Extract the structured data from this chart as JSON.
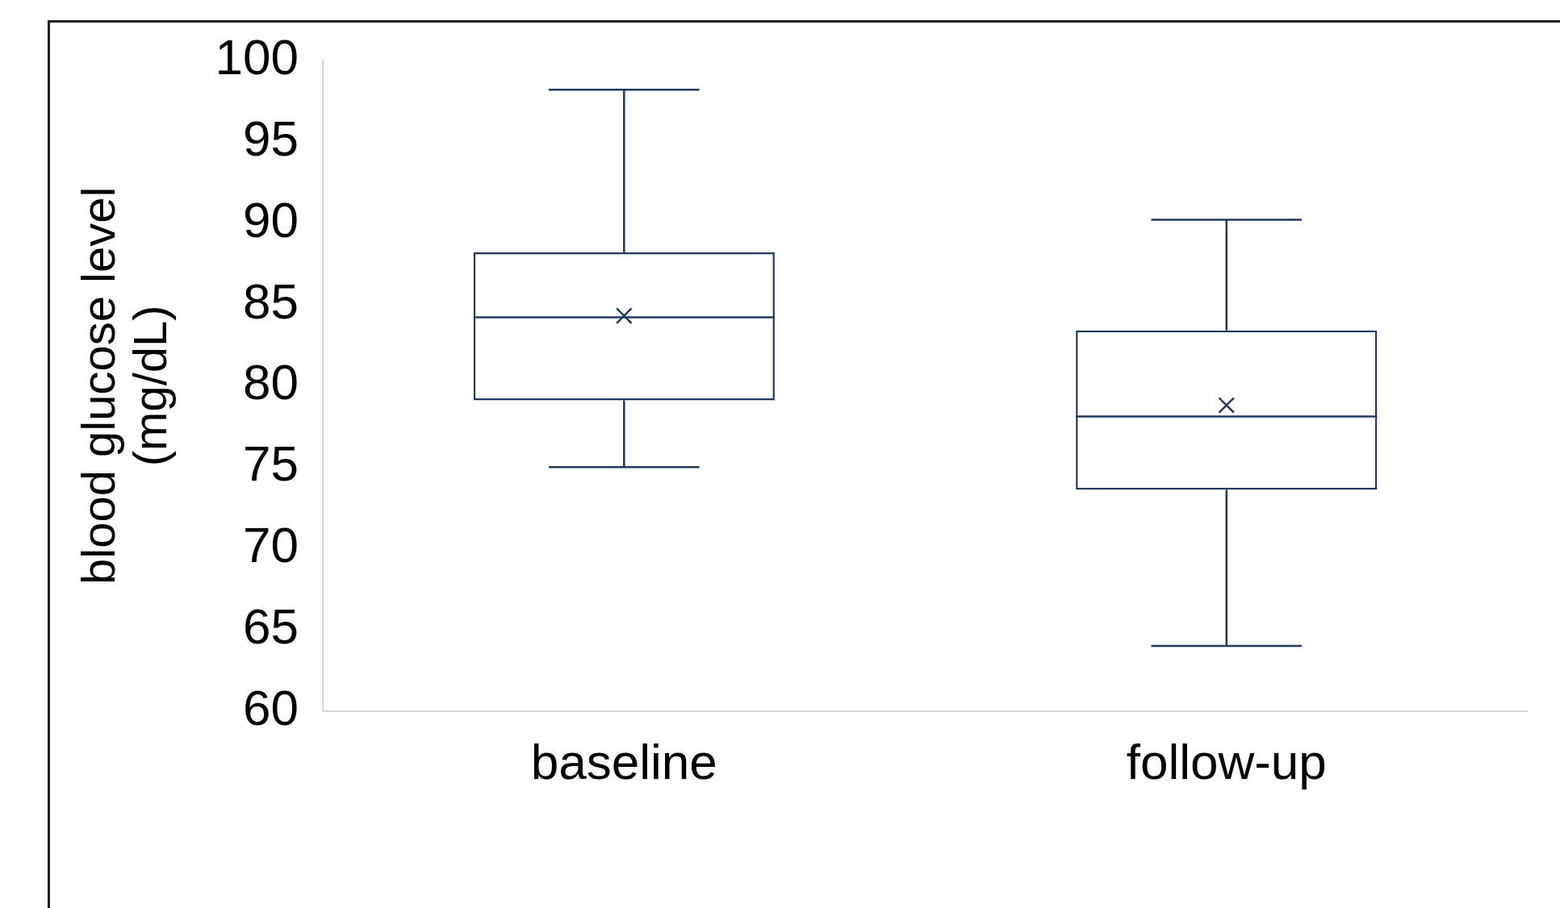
{
  "chart_data": {
    "type": "box",
    "ylabel": "blood glucose level (mg/dL)",
    "categories": [
      "baseline",
      "follow-up"
    ],
    "boxes": [
      {
        "low": 75.0,
        "q1": 79.1,
        "median": 84.2,
        "q3": 88.2,
        "high": 98.2,
        "mean": 84.3
      },
      {
        "low": 64.0,
        "q1": 73.6,
        "median": 78.1,
        "q3": 83.4,
        "high": 90.2,
        "mean": 78.8
      }
    ],
    "color": "#1f3a5f",
    "ylim": [
      60,
      100
    ],
    "yticks": [
      60,
      65,
      70,
      75,
      80,
      85,
      90,
      95,
      100
    ],
    "grid": false,
    "legend": false,
    "marker": "cross"
  }
}
